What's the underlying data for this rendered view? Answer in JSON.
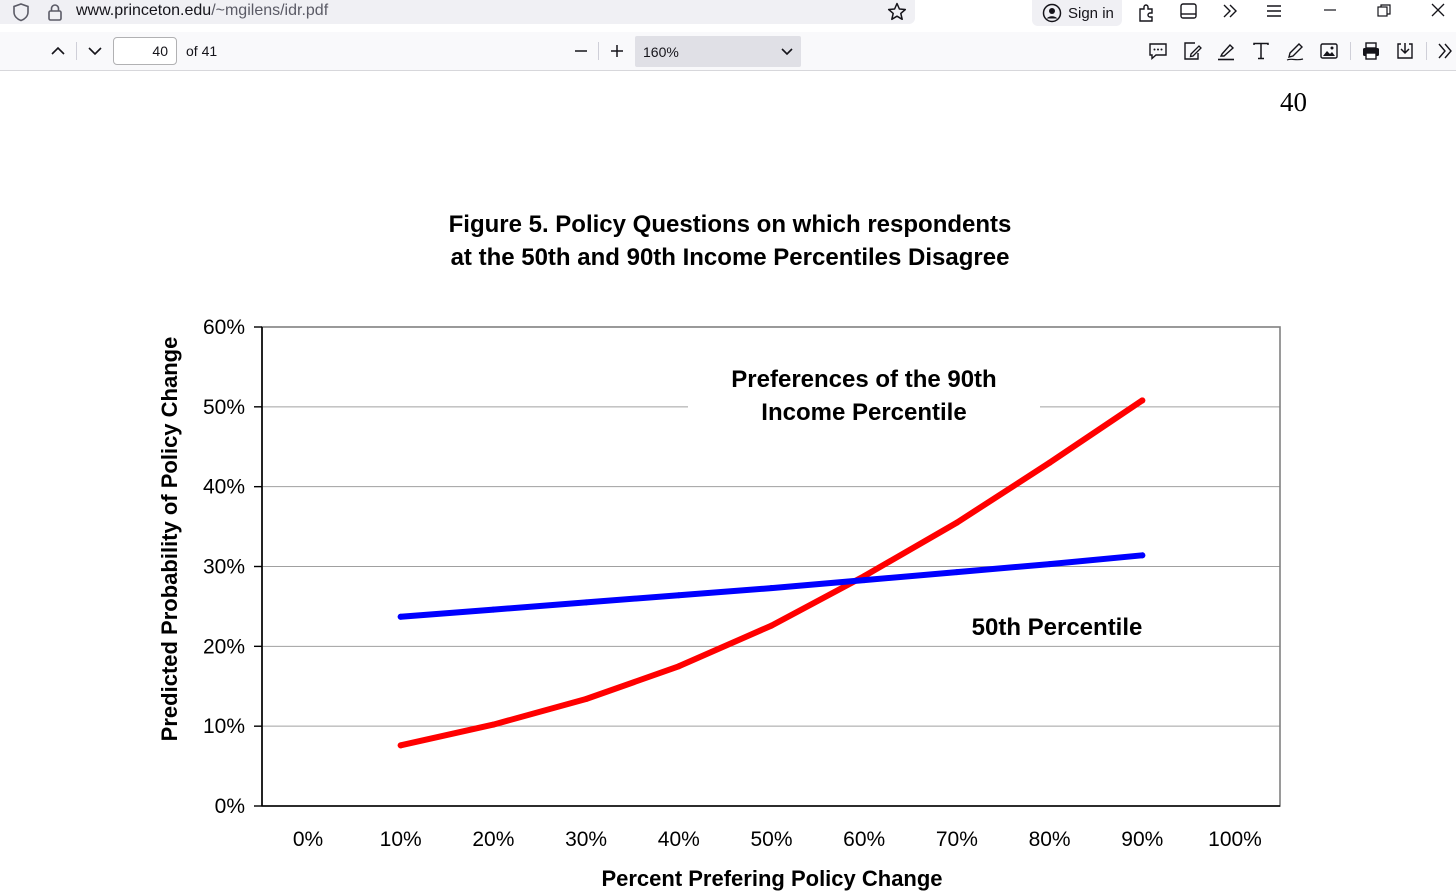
{
  "browser": {
    "url_host": "www.princeton.edu",
    "url_path": "/~mgilens/idr.pdf",
    "signin_label": "Sign in"
  },
  "pdf_toolbar": {
    "current_page": "40",
    "page_count": "of 41",
    "zoom": "160%"
  },
  "document": {
    "page_number": "40",
    "figure_title_line1": "Figure 5.  Policy Questions on which respondents",
    "figure_title_line2": "at the 50th and 90th Income Percentiles Disagree"
  },
  "chart_data": {
    "type": "line",
    "title": "Figure 5.  Policy Questions on which respondents at the 50th and 90th Income Percentiles Disagree",
    "xlabel": "Percent Prefering Policy Change",
    "ylabel": "Predicted Probability of Policy Change",
    "x_tick_labels": [
      "0%",
      "10%",
      "20%",
      "30%",
      "40%",
      "50%",
      "60%",
      "70%",
      "80%",
      "90%",
      "100%"
    ],
    "y_tick_labels": [
      "0%",
      "10%",
      "20%",
      "30%",
      "40%",
      "50%",
      "60%"
    ],
    "xlim": [
      0,
      100
    ],
    "ylim": [
      0,
      60
    ],
    "grid": "horizontal",
    "x": [
      10,
      20,
      30,
      40,
      50,
      60,
      70,
      80,
      90
    ],
    "series": [
      {
        "name": "Preferences of the 90th Income Percentile",
        "label_lines": [
          "Preferences of the 90th",
          "Income Percentile"
        ],
        "color": "#ff0000",
        "values": [
          7.6,
          10.2,
          13.4,
          17.5,
          22.6,
          28.8,
          35.5,
          43.0,
          50.8
        ]
      },
      {
        "name": "50th Percentile",
        "label_lines": [
          "50th Percentile"
        ],
        "color": "#0000ff",
        "values": [
          23.7,
          24.6,
          25.5,
          26.4,
          27.3,
          28.3,
          29.3,
          30.3,
          31.4
        ]
      }
    ]
  }
}
